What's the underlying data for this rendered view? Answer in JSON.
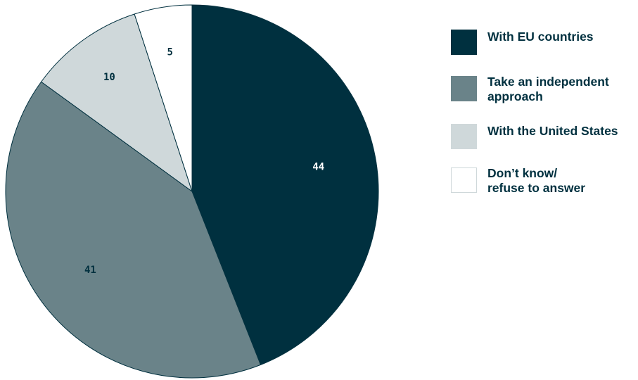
{
  "chart_data": {
    "type": "pie",
    "title": "",
    "categories": [
      "With EU countries",
      "Take an independent approach",
      "With the United States",
      "Don’t know/ refuse to answer"
    ],
    "values": [
      44,
      41,
      10,
      5
    ],
    "start_angle_degrees": 0,
    "direction": "clockwise",
    "colors": [
      "#00303f",
      "#6a8389",
      "#cfd8da",
      "#ffffff"
    ],
    "label_colors": [
      "#ffffff",
      "#00303f",
      "#00303f",
      "#00303f"
    ],
    "slice_border_color": "#00303f",
    "legend_placement": "right"
  },
  "legend": {
    "items": [
      {
        "label": "With EU countries",
        "color": "#00303f",
        "border": "#00303f"
      },
      {
        "label": "Take an independent\napproach",
        "color": "#6a8389",
        "border": "#6a8389"
      },
      {
        "label": "With the United States",
        "color": "#cfd8da",
        "border": "#cfd8da"
      },
      {
        "label": "Don’t know/\nrefuse to answer",
        "color": "#ffffff",
        "border": "#cfd8da"
      }
    ]
  }
}
